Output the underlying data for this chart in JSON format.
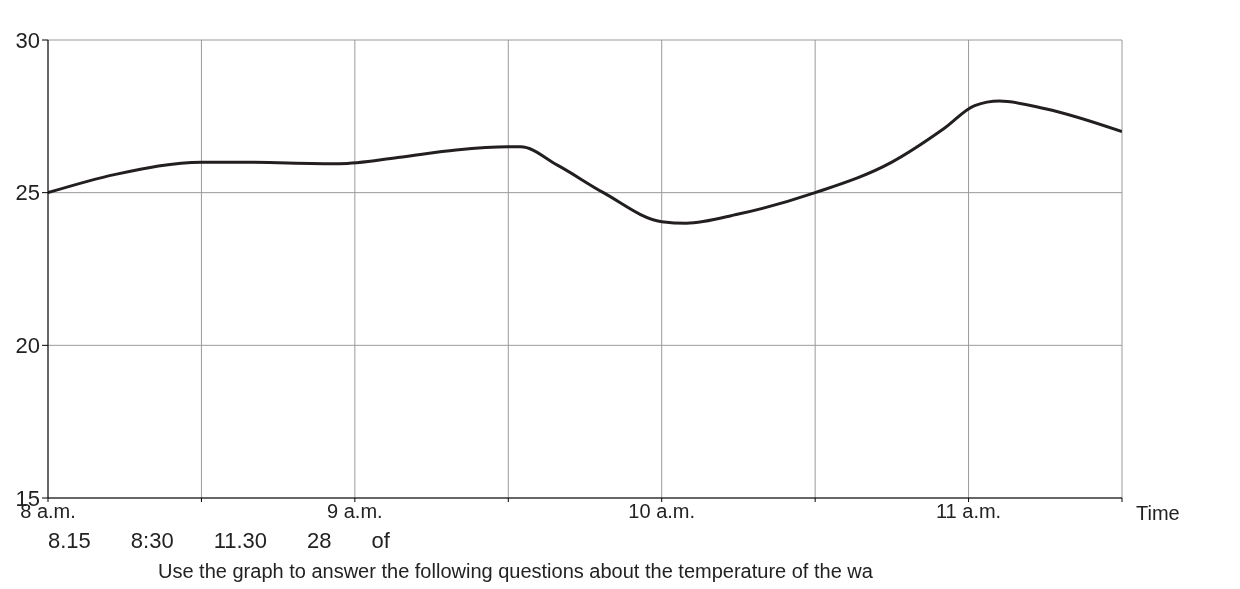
{
  "chart_data": {
    "type": "line",
    "xlabel": "Time",
    "xlim": [
      8,
      11.5
    ],
    "xticks": [
      {
        "value": 8,
        "label": "8 a.m."
      },
      {
        "value": 8.5,
        "label": null
      },
      {
        "value": 9,
        "label": "9 a.m."
      },
      {
        "value": 9.5,
        "label": null
      },
      {
        "value": 10,
        "label": "10 a.m."
      },
      {
        "value": 10.5,
        "label": null
      },
      {
        "value": 11,
        "label": "11 a.m."
      },
      {
        "value": 11.5,
        "label": null
      }
    ],
    "ylim": [
      15,
      30
    ],
    "yticks": [
      15,
      20,
      25,
      30
    ],
    "grid": true,
    "marker": "none",
    "line_style": "solid",
    "series": [
      {
        "color": "#231f20",
        "x": [
          8,
          8.22,
          8.5,
          8.61,
          8.95,
          9.14,
          9.33,
          9.5,
          9.54,
          9.66,
          9.81,
          10,
          10.08,
          10.25,
          10.5,
          10.75,
          10.92,
          11.02,
          11.1,
          11.25,
          11.5
        ],
        "values": [
          25,
          25.6,
          26,
          26,
          25.95,
          26.15,
          26.4,
          26.5,
          26.5,
          25.9,
          25,
          24.05,
          24,
          24.3,
          25,
          26,
          27.1,
          27.85,
          28,
          27.75,
          27
        ]
      }
    ],
    "annotations": [
      "8.15",
      "8:30",
      "11.30",
      "28",
      "of",
      "Use the graph to answer the following questions about the temperature of the wa"
    ]
  }
}
